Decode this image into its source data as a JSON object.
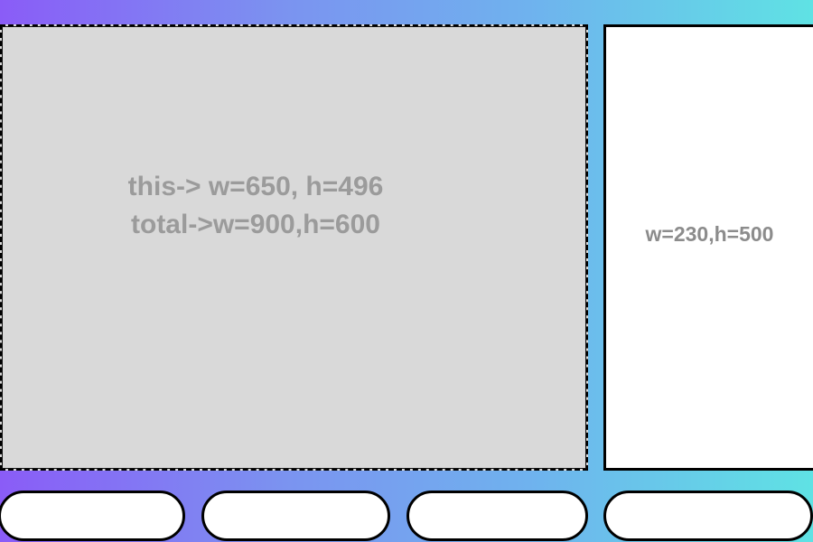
{
  "main_panel": {
    "line1": "this-> w=650, h=496",
    "line2": "total->w=900,h=600"
  },
  "side_panel": {
    "text": "w=230,h=500"
  },
  "bottom_buttons": [
    {
      "label": ""
    },
    {
      "label": ""
    },
    {
      "label": ""
    },
    {
      "label": ""
    }
  ]
}
